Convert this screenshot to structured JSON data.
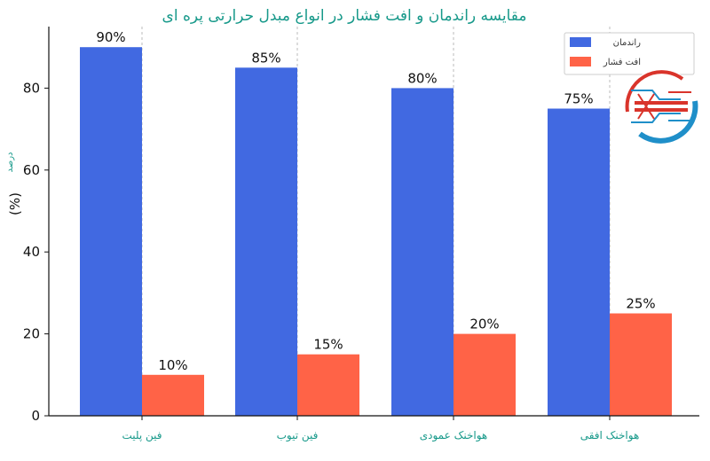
{
  "chart_data": {
    "type": "bar",
    "title": "مقایسه راندمان و افت فشار در انواع مبدل حرارتی پره ای",
    "ylabel": "(%)",
    "ylabel_small": "درصد",
    "ylim": [
      0,
      100
    ],
    "yticks": [
      0,
      20,
      40,
      60,
      80
    ],
    "grid": "x-dashed",
    "legend_position": "top-right",
    "categories": [
      "فین پلیت",
      "فین تیوب",
      "هواخنک عمودی",
      "هواخنک افقی"
    ],
    "series": [
      {
        "name": "راندمان",
        "color": "#4169e1",
        "values": [
          90,
          85,
          80,
          75
        ],
        "labels": [
          "90%",
          "85%",
          "80%",
          "75%"
        ]
      },
      {
        "name": "افت فشار",
        "color": "#ff6347",
        "values": [
          10,
          15,
          20,
          25
        ],
        "labels": [
          "10%",
          "15%",
          "20%",
          "25%"
        ]
      }
    ]
  },
  "logo": {
    "icon": "heat-exchanger-logo-icon",
    "colors": [
      "#d9342b",
      "#1f8fc9"
    ]
  }
}
